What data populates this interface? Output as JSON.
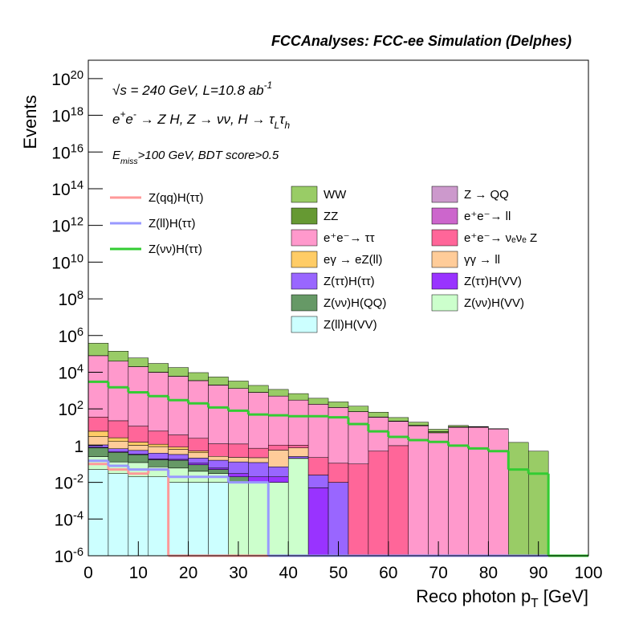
{
  "chart_data": {
    "type": "stacked-histogram",
    "title": "FCCAnalyses: FCC-ee Simulation (Delphes)",
    "annotations": [
      "√s = 240 GeV, L=10.8 ab^{-1}",
      "e^{+}e^{-} → Z H, Z → νν, H → τ_{L}τ_{h}",
      "E_{miss}>100 GeV, BDT score>0.5"
    ],
    "xlabel": "Reco photon p_{T} [GeV]",
    "ylabel": "Events",
    "log_y": true,
    "bins": [
      0,
      4,
      8,
      12,
      16,
      20,
      24,
      28,
      32,
      36,
      40,
      44,
      48,
      52,
      56,
      60,
      64,
      68,
      72,
      76,
      80,
      84,
      88,
      92,
      96,
      100
    ],
    "xlim": [
      0,
      100
    ],
    "xticks": [
      0,
      10,
      20,
      30,
      40,
      50,
      60,
      70,
      80,
      90,
      100
    ],
    "ylim": [
      1e-06,
      1e+21
    ],
    "yticks": [
      {
        "value": 1e-06,
        "label": "10^{-6}"
      },
      {
        "value": 0.0001,
        "label": "10^{-4}"
      },
      {
        "value": 0.01,
        "label": "10^{-2}"
      },
      1,
      {
        "value": 100,
        "label": "10^{2}"
      },
      {
        "value": 10000.0,
        "label": "10^{4}"
      },
      {
        "value": 1000000.0,
        "label": "10^{6}"
      },
      {
        "value": 100000000.0,
        "label": "10^{8}"
      },
      {
        "value": 10000000000.0,
        "label": "10^{10}"
      },
      {
        "value": 1000000000000.0,
        "label": "10^{12}"
      },
      {
        "value": 100000000000000.0,
        "label": "10^{14}"
      },
      {
        "value": 1e+16,
        "label": "10^{16}"
      },
      {
        "value": 1e+18,
        "label": "10^{18}"
      },
      {
        "value": 1e+20,
        "label": "10^{20}"
      }
    ],
    "series": [
      {
        "name": "WW",
        "color": "#99cc66",
        "values": [
          300000.0,
          100000.0,
          40000.0,
          20000.0,
          12000.0,
          6000.0,
          3500.0,
          2000.0,
          1100.0,
          650,
          380,
          200,
          120,
          70,
          30,
          12,
          6,
          2,
          2,
          0.5,
          0,
          1.5,
          0.5,
          0,
          0
        ]
      },
      {
        "name": "Z → QQ",
        "color": "#cc99cc",
        "values": [
          5,
          3,
          2,
          1,
          0.5,
          0.3,
          0.2,
          0,
          0,
          0,
          0,
          0,
          0,
          0,
          0,
          0,
          0,
          0,
          0,
          0,
          0,
          0,
          0,
          0,
          0
        ]
      },
      {
        "name": "ZZ",
        "color": "#669933",
        "values": [
          20,
          15,
          12,
          10,
          8,
          6,
          5,
          4,
          3,
          3,
          2.5,
          2,
          1.5,
          1.2,
          1,
          1,
          1,
          0.8,
          0.6,
          0.5,
          0.4,
          0,
          0,
          0,
          0
        ]
      },
      {
        "name": "e⁺e⁻→ ll",
        "color": "#cc66cc",
        "values": [
          300,
          200,
          100,
          50,
          30,
          10,
          5,
          2,
          1,
          0.5,
          0.2,
          0,
          0,
          0,
          0,
          0,
          0,
          0,
          0,
          0,
          0,
          0,
          0,
          0,
          0
        ]
      },
      {
        "name": "e⁺e⁻→ ττ",
        "color": "#ff99cc",
        "values": [
          80000.0,
          40000.0,
          20000.0,
          10000.0,
          6000.0,
          3500.0,
          2000.0,
          1300.0,
          800,
          500,
          300,
          180,
          120,
          70,
          35,
          20,
          12,
          5,
          10,
          10,
          8,
          0,
          0,
          0,
          0
        ]
      },
      {
        "name": "e⁺e⁻→ νₑνₑ Z",
        "color": "#ff6699",
        "values": [
          30,
          20,
          10,
          5,
          3,
          2,
          1,
          1,
          0.5,
          0.5,
          0.3,
          0.2,
          0.1,
          0.1,
          0.5,
          1,
          0,
          0,
          0,
          0,
          0,
          0,
          0,
          0,
          0
        ]
      },
      {
        "name": "eγ → eZ(ll)",
        "color": "#ffcc66",
        "values": [
          3,
          1,
          0.5,
          0.3,
          0.2,
          0.1,
          0,
          0,
          0,
          0,
          0,
          0,
          0,
          0,
          0,
          0,
          0,
          0,
          0,
          0,
          0,
          0,
          0,
          0,
          0
        ]
      },
      {
        "name": "γγ → ll",
        "color": "#ffcc99",
        "values": [
          2,
          1,
          0.5,
          0.5,
          0.3,
          0.2,
          0.1,
          0.1,
          0.1,
          0.5,
          0.5,
          0,
          0,
          0,
          0,
          0,
          0,
          0,
          0,
          0,
          0,
          0,
          0,
          0,
          0
        ]
      },
      {
        "name": "Z(ττ)H(ττ)",
        "color": "#9966ff",
        "values": [
          0.3,
          0.2,
          0.2,
          0.2,
          0.15,
          0.1,
          0.1,
          0.1,
          0.1,
          0.05,
          0.05,
          0.02,
          0.01,
          0,
          0,
          0,
          0,
          0,
          0,
          0,
          0,
          0,
          0,
          0,
          0
        ]
      },
      {
        "name": "Z(ττ)H(VV)",
        "color": "#9933ff",
        "values": [
          0.05,
          0.05,
          0.03,
          0.02,
          0.02,
          0.02,
          0.01,
          0.01,
          0.01,
          0.01,
          0.005,
          0.005,
          0,
          0,
          0,
          0,
          0,
          0,
          0,
          0,
          0,
          0,
          0,
          0,
          0
        ]
      },
      {
        "name": "Z(νν)H(QQ)",
        "color": "#669966",
        "values": [
          0.5,
          0.3,
          0.2,
          0.1,
          0.1,
          0.05,
          0.02,
          0.01,
          0,
          0,
          0,
          0,
          0,
          0,
          0,
          0,
          0,
          0,
          0,
          0,
          0,
          0,
          0,
          0,
          0
        ]
      },
      {
        "name": "Z(νν)H(VV)",
        "color": "#ccffcc",
        "values": [
          0.2,
          0.1,
          0.1,
          0.05,
          0.05,
          0.03,
          0.02,
          0.01,
          0.01,
          0.01,
          0.2,
          0,
          0,
          0,
          0,
          0,
          0,
          0,
          0,
          0,
          0,
          0,
          0,
          0,
          0
        ]
      },
      {
        "name": "Z(ll)H(VV)",
        "color": "#ccffff",
        "values": [
          0.05,
          0.03,
          0.02,
          0.02,
          0.01,
          0.01,
          0.01,
          0,
          0,
          0,
          0,
          0,
          0,
          0,
          0,
          0,
          0,
          0,
          0,
          0,
          0,
          0,
          0,
          0,
          0
        ]
      }
    ],
    "lines": [
      {
        "name": "Z(qq)H(ττ)",
        "color": "#ff9999",
        "values": [
          0.1,
          0.05,
          0.03,
          0.05,
          0,
          0,
          0,
          0,
          0,
          0,
          0,
          0,
          0,
          0,
          0,
          0,
          0,
          0,
          0,
          0,
          0,
          0,
          0,
          0,
          0
        ]
      },
      {
        "name": "Z(ll)H(ττ)",
        "color": "#9999ff",
        "values": [
          0.15,
          0.08,
          0.05,
          0.05,
          0.02,
          0.02,
          0.02,
          0.01,
          0.01,
          0,
          0,
          0,
          0,
          0,
          0,
          0,
          0,
          0,
          0,
          0,
          0,
          0,
          0,
          0,
          0
        ]
      },
      {
        "name": "Z(νν)H(ττ)",
        "color": "#33cc33",
        "values": [
          3000.0,
          1500.0,
          800,
          500,
          300,
          200,
          120,
          80,
          50,
          45,
          40,
          40,
          35,
          15,
          6,
          3,
          2,
          1.6,
          1,
          0.7,
          0.5,
          0.05,
          0.03,
          0,
          0
        ]
      }
    ]
  }
}
